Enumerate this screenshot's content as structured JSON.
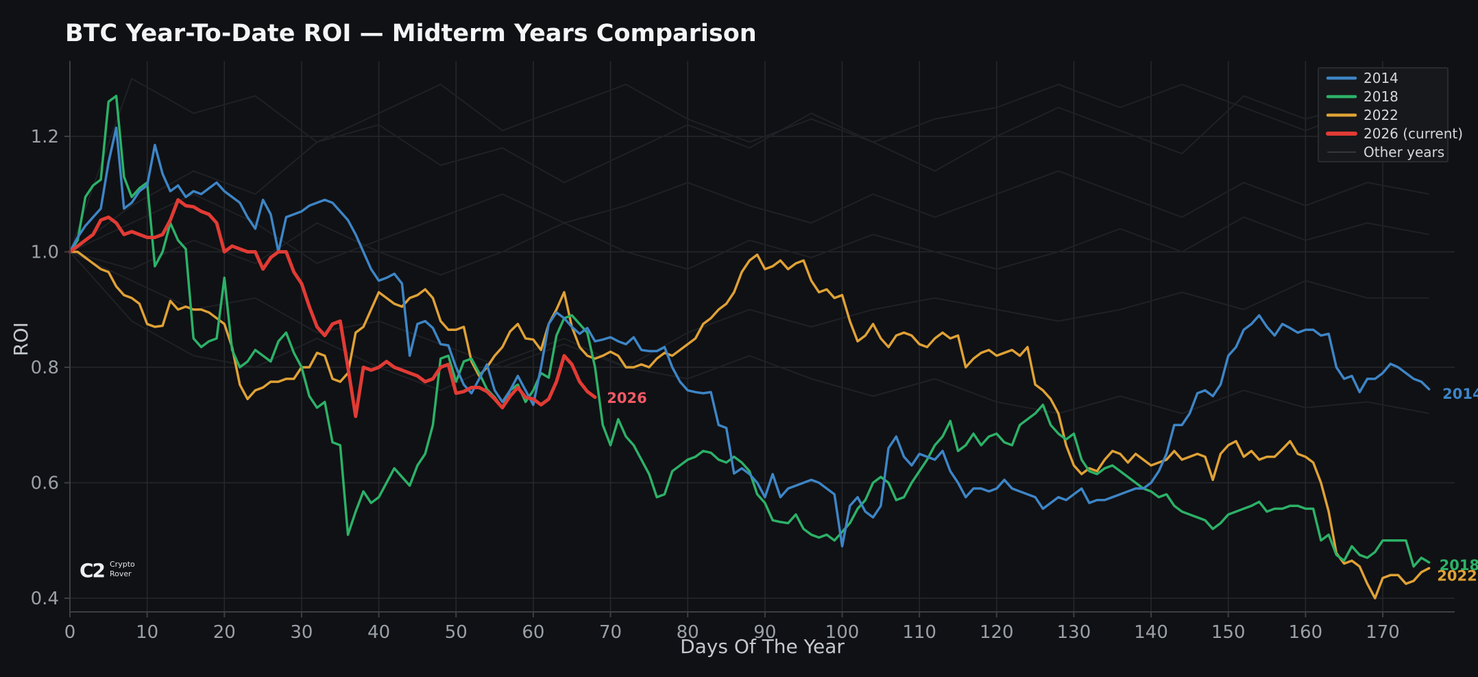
{
  "page": {
    "background": "#101114"
  },
  "header": {
    "title": "BTC Year-To-Date ROI — Midterm Years Comparison"
  },
  "watermark": {
    "glyph": "C2",
    "line1": "Crypto",
    "line2": "Rover"
  },
  "colors": {
    "background": "#101114",
    "gridline": "#26282c",
    "spine": "#3c3f43",
    "tick_text": "#9aa0a7",
    "axis_text": "#c4c9cf",
    "title_text": "#f4f5f7",
    "legend_bg": "#16181b",
    "legend_border": "#2f3236",
    "series_2014": "#3d85c6",
    "series_2018": "#2cb168",
    "series_2022": "#dfa136",
    "series_2026": "#e13b35",
    "annotation_2026": "#ef5a65",
    "other_years": "#1e2125"
  },
  "chart_data": {
    "type": "line",
    "title": "BTC Year-To-Date ROI — Midterm Years Comparison",
    "xlabel": "Days Of The Year",
    "ylabel": "ROI",
    "xlim": [
      0,
      179
    ],
    "ylim": [
      0.37,
      1.33
    ],
    "xticks": [
      0,
      10,
      20,
      30,
      40,
      50,
      60,
      70,
      80,
      90,
      100,
      110,
      120,
      130,
      140,
      150,
      160,
      170
    ],
    "yticks": [
      {
        "value": 0.4,
        "label": "0.4"
      },
      {
        "value": 0.6,
        "label": "0.6"
      },
      {
        "value": 0.8,
        "label": "0.8"
      },
      {
        "value": 1.0,
        "label": "1.0"
      },
      {
        "value": 1.2,
        "label": "1.2"
      }
    ],
    "grid": true,
    "legend_position": "top-right",
    "legend": [
      {
        "label": "2014",
        "color": "#3d85c6",
        "swatch_width": 4.5
      },
      {
        "label": "2018",
        "color": "#2cb168",
        "swatch_width": 4.5
      },
      {
        "label": "2022",
        "color": "#dfa136",
        "swatch_width": 4.5
      },
      {
        "label": "2026 (current)",
        "color": "#e13b35",
        "swatch_width": 6
      },
      {
        "label": "Other years",
        "color": "#34373b",
        "swatch_width": 2
      }
    ],
    "series": [
      {
        "name": "2022",
        "color": "#dfa136",
        "line_width": 3.5,
        "x_start": 0,
        "x_step": 1,
        "values": [
          1.0,
          1.0,
          0.99,
          0.98,
          0.97,
          0.965,
          0.94,
          0.925,
          0.92,
          0.91,
          0.875,
          0.87,
          0.872,
          0.915,
          0.9,
          0.905,
          0.9,
          0.9,
          0.895,
          0.885,
          0.875,
          0.835,
          0.77,
          0.745,
          0.76,
          0.765,
          0.775,
          0.775,
          0.78,
          0.78,
          0.8,
          0.8,
          0.825,
          0.82,
          0.78,
          0.775,
          0.79,
          0.86,
          0.87,
          0.9,
          0.93,
          0.92,
          0.91,
          0.905,
          0.92,
          0.925,
          0.935,
          0.92,
          0.88,
          0.865,
          0.865,
          0.87,
          0.81,
          0.785,
          0.8,
          0.82,
          0.835,
          0.862,
          0.875,
          0.85,
          0.848,
          0.83,
          0.875,
          0.9,
          0.93,
          0.87,
          0.835,
          0.82,
          0.815,
          0.82,
          0.827,
          0.82,
          0.8,
          0.8,
          0.805,
          0.8,
          0.815,
          0.825,
          0.82,
          0.83,
          0.84,
          0.85,
          0.875,
          0.885,
          0.9,
          0.91,
          0.93,
          0.965,
          0.985,
          0.995,
          0.97,
          0.975,
          0.985,
          0.97,
          0.98,
          0.985,
          0.95,
          0.93,
          0.935,
          0.92,
          0.925,
          0.88,
          0.845,
          0.855,
          0.875,
          0.85,
          0.835,
          0.855,
          0.86,
          0.855,
          0.84,
          0.835,
          0.85,
          0.86,
          0.85,
          0.855,
          0.8,
          0.815,
          0.825,
          0.83,
          0.82,
          0.825,
          0.83,
          0.82,
          0.835,
          0.77,
          0.76,
          0.745,
          0.72,
          0.665,
          0.63,
          0.615,
          0.625,
          0.62,
          0.64,
          0.655,
          0.65,
          0.635,
          0.65,
          0.64,
          0.63,
          0.635,
          0.64,
          0.655,
          0.64,
          0.645,
          0.65,
          0.645,
          0.605,
          0.65,
          0.665,
          0.672,
          0.645,
          0.655,
          0.64,
          0.645,
          0.645,
          0.658,
          0.672,
          0.65,
          0.645,
          0.635,
          0.6,
          0.55,
          0.478,
          0.46,
          0.465,
          0.455,
          0.425,
          0.4,
          0.435,
          0.44,
          0.44,
          0.425,
          0.43,
          0.445,
          0.452
        ]
      },
      {
        "name": "2018",
        "color": "#2cb168",
        "line_width": 3.5,
        "x_start": 0,
        "x_step": 1,
        "values": [
          1.0,
          1.02,
          1.095,
          1.115,
          1.125,
          1.26,
          1.27,
          1.13,
          1.095,
          1.11,
          1.12,
          0.975,
          1.0,
          1.05,
          1.02,
          1.005,
          0.85,
          0.835,
          0.845,
          0.85,
          0.955,
          0.83,
          0.8,
          0.81,
          0.83,
          0.82,
          0.81,
          0.845,
          0.86,
          0.825,
          0.8,
          0.75,
          0.73,
          0.74,
          0.67,
          0.665,
          0.51,
          0.55,
          0.585,
          0.565,
          0.575,
          0.6,
          0.625,
          0.61,
          0.595,
          0.63,
          0.65,
          0.7,
          0.815,
          0.82,
          0.775,
          0.81,
          0.815,
          0.79,
          0.762,
          0.748,
          0.73,
          0.76,
          0.77,
          0.74,
          0.76,
          0.79,
          0.782,
          0.855,
          0.885,
          0.89,
          0.875,
          0.86,
          0.8,
          0.7,
          0.665,
          0.71,
          0.68,
          0.665,
          0.64,
          0.615,
          0.575,
          0.58,
          0.62,
          0.63,
          0.64,
          0.645,
          0.655,
          0.652,
          0.64,
          0.635,
          0.645,
          0.635,
          0.62,
          0.58,
          0.565,
          0.535,
          0.532,
          0.53,
          0.545,
          0.52,
          0.51,
          0.505,
          0.51,
          0.5,
          0.515,
          0.53,
          0.555,
          0.57,
          0.6,
          0.61,
          0.6,
          0.57,
          0.575,
          0.6,
          0.62,
          0.64,
          0.665,
          0.68,
          0.707,
          0.655,
          0.665,
          0.685,
          0.665,
          0.68,
          0.685,
          0.67,
          0.665,
          0.7,
          0.71,
          0.72,
          0.735,
          0.7,
          0.685,
          0.675,
          0.685,
          0.64,
          0.62,
          0.615,
          0.625,
          0.63,
          0.62,
          0.61,
          0.6,
          0.59,
          0.585,
          0.575,
          0.58,
          0.56,
          0.55,
          0.545,
          0.54,
          0.535,
          0.52,
          0.53,
          0.545,
          0.55,
          0.555,
          0.56,
          0.567,
          0.55,
          0.555,
          0.555,
          0.56,
          0.56,
          0.555,
          0.555,
          0.5,
          0.51,
          0.475,
          0.465,
          0.49,
          0.475,
          0.47,
          0.48,
          0.5,
          0.5,
          0.5,
          0.5,
          0.455,
          0.47,
          0.462
        ]
      },
      {
        "name": "2014",
        "color": "#3d85c6",
        "line_width": 3.5,
        "x_start": 0,
        "x_step": 1,
        "values": [
          1.0,
          1.025,
          1.045,
          1.06,
          1.075,
          1.155,
          1.215,
          1.075,
          1.085,
          1.105,
          1.115,
          1.185,
          1.135,
          1.105,
          1.115,
          1.095,
          1.105,
          1.1,
          1.11,
          1.12,
          1.105,
          1.095,
          1.085,
          1.06,
          1.04,
          1.09,
          1.065,
          1.0,
          1.06,
          1.065,
          1.07,
          1.08,
          1.085,
          1.09,
          1.085,
          1.07,
          1.055,
          1.03,
          1.0,
          0.97,
          0.95,
          0.955,
          0.962,
          0.945,
          0.82,
          0.875,
          0.88,
          0.868,
          0.84,
          0.838,
          0.8,
          0.77,
          0.755,
          0.78,
          0.805,
          0.76,
          0.74,
          0.76,
          0.785,
          0.76,
          0.735,
          0.8,
          0.875,
          0.895,
          0.885,
          0.87,
          0.858,
          0.868,
          0.845,
          0.848,
          0.852,
          0.845,
          0.84,
          0.852,
          0.83,
          0.828,
          0.828,
          0.835,
          0.8,
          0.775,
          0.76,
          0.757,
          0.755,
          0.757,
          0.7,
          0.695,
          0.616,
          0.625,
          0.615,
          0.6,
          0.575,
          0.615,
          0.575,
          0.59,
          0.595,
          0.6,
          0.605,
          0.6,
          0.59,
          0.58,
          0.49,
          0.56,
          0.575,
          0.55,
          0.54,
          0.56,
          0.66,
          0.68,
          0.645,
          0.63,
          0.65,
          0.645,
          0.64,
          0.655,
          0.62,
          0.6,
          0.575,
          0.59,
          0.59,
          0.585,
          0.59,
          0.605,
          0.59,
          0.585,
          0.58,
          0.575,
          0.555,
          0.565,
          0.575,
          0.57,
          0.58,
          0.59,
          0.565,
          0.57,
          0.57,
          0.575,
          0.58,
          0.585,
          0.59,
          0.59,
          0.6,
          0.62,
          0.65,
          0.7,
          0.7,
          0.72,
          0.755,
          0.76,
          0.75,
          0.77,
          0.82,
          0.835,
          0.865,
          0.875,
          0.89,
          0.87,
          0.855,
          0.875,
          0.868,
          0.86,
          0.865,
          0.865,
          0.855,
          0.858,
          0.8,
          0.78,
          0.785,
          0.757,
          0.78,
          0.78,
          0.79,
          0.806,
          0.8,
          0.79,
          0.78,
          0.775,
          0.762
        ]
      },
      {
        "name": "2026 (current)",
        "color": "#e13b35",
        "line_width": 5,
        "x_start": 0,
        "x_step": 1,
        "values": [
          1.0,
          1.01,
          1.02,
          1.03,
          1.055,
          1.06,
          1.05,
          1.03,
          1.035,
          1.03,
          1.025,
          1.025,
          1.03,
          1.055,
          1.09,
          1.08,
          1.078,
          1.07,
          1.065,
          1.05,
          1.0,
          1.01,
          1.005,
          1.0,
          1.0,
          0.97,
          0.99,
          1.0,
          1.0,
          0.965,
          0.945,
          0.905,
          0.87,
          0.855,
          0.875,
          0.88,
          0.8,
          0.715,
          0.8,
          0.795,
          0.8,
          0.81,
          0.8,
          0.795,
          0.79,
          0.785,
          0.775,
          0.78,
          0.8,
          0.805,
          0.755,
          0.758,
          0.765,
          0.765,
          0.758,
          0.745,
          0.73,
          0.75,
          0.765,
          0.748,
          0.745,
          0.735,
          0.745,
          0.775,
          0.82,
          0.805,
          0.775,
          0.758,
          0.748
        ]
      }
    ],
    "other_years": {
      "label": "Other years",
      "color": "#1e2125",
      "line_width": 2,
      "x_start": 0,
      "x_step": 8,
      "series": [
        [
          1.0,
          1.08,
          1.14,
          1.1,
          1.19,
          1.22,
          1.15,
          1.18,
          1.12,
          1.17,
          1.22,
          1.18,
          1.24,
          1.19,
          1.14,
          1.2,
          1.25,
          1.21,
          1.17,
          1.27,
          1.23,
          1.26,
          1.24
        ],
        [
          1.0,
          1.3,
          1.24,
          1.27,
          1.19,
          1.24,
          1.29,
          1.21,
          1.25,
          1.29,
          1.23,
          1.19,
          1.23,
          1.19,
          1.23,
          1.25,
          1.29,
          1.25,
          1.29,
          1.25,
          1.21,
          1.25,
          1.23
        ],
        [
          1.0,
          0.97,
          1.02,
          0.98,
          1.05,
          1.0,
          0.96,
          1.0,
          1.05,
          1.0,
          0.97,
          1.02,
          0.99,
          1.03,
          1.0,
          0.97,
          1.0,
          1.04,
          1.0,
          1.06,
          1.02,
          1.05,
          1.03
        ],
        [
          1.0,
          0.95,
          0.9,
          0.92,
          0.86,
          0.88,
          0.84,
          0.8,
          0.84,
          0.8,
          0.78,
          0.82,
          0.78,
          0.75,
          0.78,
          0.74,
          0.72,
          0.75,
          0.72,
          0.76,
          0.73,
          0.74,
          0.72
        ],
        [
          1.0,
          1.05,
          1.1,
          1.05,
          0.98,
          1.02,
          1.06,
          1.1,
          1.05,
          1.08,
          1.12,
          1.08,
          1.05,
          1.1,
          1.06,
          1.1,
          1.14,
          1.1,
          1.06,
          1.12,
          1.08,
          1.12,
          1.1
        ],
        [
          1.0,
          0.88,
          0.82,
          0.8,
          0.85,
          0.8,
          0.76,
          0.81,
          0.85,
          0.8,
          0.86,
          0.9,
          0.87,
          0.9,
          0.92,
          0.9,
          0.88,
          0.9,
          0.93,
          0.9,
          0.95,
          0.92,
          0.92
        ]
      ]
    },
    "annotations": [
      {
        "text": "2026",
        "day": 69.0,
        "value": 0.748,
        "color": "#ef5a65",
        "font_size": 22
      },
      {
        "text": "2014",
        "day": 177.2,
        "value": 0.755,
        "color": "#3d85c6",
        "font_size": 21
      },
      {
        "text": "2018",
        "day": 176.8,
        "value": 0.458,
        "color": "#2cb168",
        "font_size": 21
      },
      {
        "text": "2022",
        "day": 176.5,
        "value": 0.44,
        "color": "#dfa136",
        "font_size": 21
      }
    ]
  }
}
